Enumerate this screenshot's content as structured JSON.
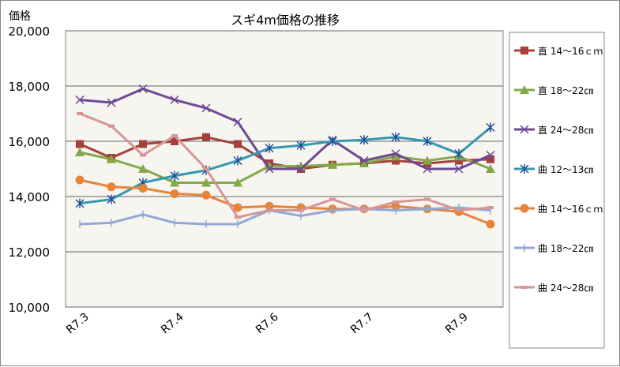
{
  "chart_data": {
    "type": "line",
    "title": "スギ4m価格の推移",
    "ylabel": "価格",
    "xlabel": "",
    "ylim": [
      10000,
      20000
    ],
    "yticks": [
      "10,000",
      "12,000",
      "14,000",
      "16,000",
      "18,000",
      "20,000"
    ],
    "ytick_values": [
      10000,
      12000,
      14000,
      16000,
      18000,
      20000
    ],
    "grid": true,
    "legend_position": "right",
    "categories": [
      "R7.3",
      "",
      "",
      "R7.4",
      "",
      "",
      "R7.6",
      "",
      "",
      "R7.7",
      "",
      "",
      "R7.9",
      ""
    ],
    "series": [
      {
        "name": "直  14～16ｃｍ",
        "color": "#A5403C",
        "marker": "square",
        "values": [
          15900,
          15400,
          15900,
          16000,
          16150,
          15900,
          15200,
          15000,
          15150,
          15200,
          15300,
          15200,
          15300,
          15350
        ]
      },
      {
        "name": "直  18～22㎝",
        "color": "#84A84A",
        "marker": "triangle",
        "values": [
          15600,
          15350,
          15000,
          14500,
          14500,
          14500,
          15100,
          15100,
          15150,
          15200,
          15450,
          15300,
          15450,
          15000
        ]
      },
      {
        "name": "直  24～28㎝",
        "color": "#6E4A93",
        "marker": "x",
        "values": [
          17500,
          17400,
          17900,
          17500,
          17200,
          16700,
          15000,
          15000,
          16050,
          15300,
          15550,
          15000,
          15000,
          15500
        ]
      },
      {
        "name": "曲  12～13㎝",
        "color": "#3598B0",
        "marker": "star",
        "values": [
          13750,
          13900,
          14500,
          14750,
          14950,
          15300,
          15750,
          15850,
          16000,
          16050,
          16150,
          16000,
          15550,
          16500
        ]
      },
      {
        "name": "曲  14～16ｃｍ",
        "color": "#E6853A",
        "marker": "circle",
        "values": [
          14600,
          14350,
          14300,
          14100,
          14050,
          13600,
          13650,
          13600,
          13550,
          13550,
          13650,
          13550,
          13450,
          13000
        ]
      },
      {
        "name": "曲  18～22㎝",
        "color": "#92A9D6",
        "marker": "plus",
        "values": [
          13000,
          13050,
          13350,
          13050,
          13000,
          13000,
          13500,
          13300,
          13500,
          13550,
          13500,
          13550,
          13600,
          13500
        ]
      },
      {
        "name": "曲  24～28㎝",
        "color": "#D69695",
        "marker": "dash",
        "values": [
          17000,
          16550,
          15500,
          16200,
          15000,
          13250,
          13500,
          13500,
          13900,
          13500,
          13800,
          13900,
          13500,
          13600
        ]
      }
    ]
  }
}
